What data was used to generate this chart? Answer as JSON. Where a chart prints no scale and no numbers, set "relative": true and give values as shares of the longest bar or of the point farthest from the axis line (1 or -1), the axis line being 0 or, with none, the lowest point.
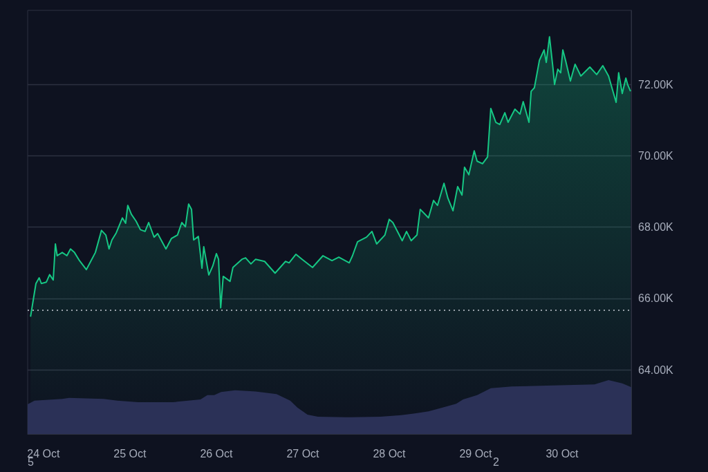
{
  "chart_data": [
    {
      "type": "area",
      "x": [
        "--10-23T20:24",
        "--10-23T20:54",
        "--10-23T21:54",
        "--10-23T22:48",
        "--10-23T23:24",
        "--10-24T00:48",
        "--10-24T01:42",
        "--10-24T02:42",
        "--10-24T03:18",
        "--10-24T03:48",
        "--10-24T05:12",
        "--10-24T06:30",
        "--10-24T07:30",
        "--10-24T08:36",
        "--10-24T10:00",
        "--10-24T11:54",
        "--10-24T12:54",
        "--10-24T14:24",
        "--10-24T16:06",
        "--10-24T17:18",
        "--10-24T18:12",
        "--10-24T19:00",
        "--10-24T20:12",
        "--10-24T21:54",
        "--10-24T22:48",
        "--10-24T23:24",
        "--10-25T00:24",
        "--10-25T01:42",
        "--10-25T02:54",
        "--10-25T04:12",
        "--10-25T05:12",
        "--10-25T06:42",
        "--10-25T07:42",
        "--10-25T10:00",
        "--10-25T11:30",
        "--10-25T13:12",
        "--10-25T14:24",
        "--10-25T15:24",
        "--10-25T16:18",
        "--10-25T17:06",
        "--10-25T17:42",
        "--10-25T19:00",
        "--10-25T20:00",
        "--10-25T20:30",
        "--10-25T21:54",
        "--10-25T23:00",
        "--10-26T00:00",
        "--10-26T00:36",
        "--10-26T01:12",
        "--10-26T01:54",
        "--10-26T03:48",
        "--10-26T04:36",
        "--10-26T07:06",
        "--10-26T08:06",
        "--10-26T09:36",
        "--10-26T10:54",
        "--10-26T13:24",
        "--10-26T16:18",
        "--10-26T19:12",
        "--10-26T20:12",
        "--10-26T22:06",
        "--10-26T23:48",
        "--10-27T02:42",
        "--10-27T05:36",
        "--10-27T08:06",
        "--10-27T10:00",
        "--10-27T12:54",
        "--10-27T13:48",
        "--10-27T15:12",
        "--10-27T17:42",
        "--10-27T19:12",
        "--10-27T20:30",
        "--10-27T22:48",
        "--10-28T00:00",
        "--10-28T01:00",
        "--10-28T03:36",
        "--10-28T04:48",
        "--10-28T06:06",
        "--10-28T07:42",
        "--10-28T08:36",
        "--10-28T10:54",
        "--10-28T12:18",
        "--10-28T13:24",
        "--10-28T15:12",
        "--10-28T16:18",
        "--10-28T17:42",
        "--10-28T19:00",
        "--10-28T20:12",
        "--10-28T20:54",
        "--10-28T22:06",
        "--10-28T23:36",
        "--10-29T00:24",
        "--10-29T01:54",
        "--10-29T03:18",
        "--10-29T04:12",
        "--10-29T05:36",
        "--10-29T06:42",
        "--10-29T08:06",
        "--10-29T09:00",
        "--10-29T10:54",
        "--10-29T12:18",
        "--10-29T13:12",
        "--10-29T14:48",
        "--10-29T15:24",
        "--10-29T16:18",
        "--10-29T17:42",
        "--10-29T19:00",
        "--10-29T19:36",
        "--10-29T20:30",
        "--10-29T21:30",
        "--10-29T21:54",
        "--10-29T22:48",
        "--10-29T23:36",
        "--10-30T00:12",
        "--10-30T01:00",
        "--10-30T02:18",
        "--10-30T03:36",
        "--10-30T05:12",
        "--10-30T07:42",
        "--10-30T09:36",
        "--10-30T11:18",
        "--10-30T12:54",
        "--10-30T14:00",
        "--10-30T15:00",
        "--10-30T15:42",
        "--10-30T16:42",
        "--10-30T17:42",
        "--10-30T18:12",
        "--10-30T19:00"
      ],
      "series": [
        {
          "color": "#16c784",
          "values": [
            65490,
            65800,
            66420,
            66580,
            66420,
            66460,
            66670,
            66520,
            67530,
            67200,
            67290,
            67200,
            67390,
            67290,
            67060,
            66810,
            67000,
            67290,
            67910,
            67780,
            67390,
            67640,
            67840,
            68260,
            68110,
            68610,
            68360,
            68170,
            67930,
            67880,
            68130,
            67720,
            67820,
            67390,
            67680,
            67780,
            68130,
            68010,
            68650,
            68500,
            67640,
            67740,
            66850,
            67450,
            66660,
            66910,
            67260,
            67100,
            65740,
            66620,
            66480,
            66870,
            67100,
            67140,
            66970,
            67100,
            67040,
            66710,
            67040,
            67000,
            67240,
            67100,
            66870,
            67200,
            67060,
            67160,
            67000,
            67200,
            67590,
            67720,
            67880,
            67530,
            67780,
            68220,
            68130,
            67620,
            67880,
            67620,
            67780,
            68500,
            68260,
            68750,
            68610,
            69230,
            68810,
            68460,
            69140,
            68900,
            69680,
            69470,
            70140,
            69850,
            69780,
            69970,
            71330,
            70940,
            70880,
            71210,
            70940,
            71310,
            71170,
            71520,
            70940,
            71810,
            71910,
            72680,
            72970,
            72620,
            73340,
            72430,
            72000,
            72430,
            72330,
            72970,
            72660,
            72100,
            72570,
            72240,
            72490,
            72280,
            72530,
            72240,
            71850,
            71500,
            72330,
            71750,
            72180,
            72000,
            71810
          ]
        }
      ],
      "xlim": [
        "--10-23T19:36",
        "--10-30T19:12"
      ],
      "xticks": [
        {
          "value": "--10-24",
          "label": "24 Oct"
        },
        {
          "value": "--10-25",
          "label": "25 Oct"
        },
        {
          "value": "--10-26",
          "label": "26 Oct"
        },
        {
          "value": "--10-27",
          "label": "27 Oct"
        },
        {
          "value": "--10-28",
          "label": "28 Oct"
        },
        {
          "value": "--10-29",
          "label": "29 Oct"
        },
        {
          "value": "--10-30",
          "label": "30 Oct"
        }
      ],
      "ylim": [
        62200,
        74080
      ],
      "yticks": [
        {
          "value": 64000,
          "label": "64.00K"
        },
        {
          "value": 66000,
          "label": "66.00K"
        },
        {
          "value": 68000,
          "label": "68.00K"
        },
        {
          "value": 70000,
          "label": "70.00K"
        },
        {
          "value": 72000,
          "label": "72.00K"
        }
      ],
      "grid": "y",
      "ref_lines": [
        {
          "axis": "y",
          "value": 65670,
          "color": "#c8ccd4",
          "line_style": "dotted"
        }
      ],
      "annotations": [
        "5",
        "2"
      ]
    },
    {
      "type": "area",
      "relative": true,
      "tick_labels": false,
      "x": [
        "--10-23T19:36",
        "--10-23T21:30",
        "--10-24T05:12",
        "--10-24T07:06",
        "--10-24T16:42",
        "--10-24T20:30",
        "--10-25T02:18",
        "--10-25T11:54",
        "--10-25T19:36",
        "--10-25T21:30",
        "--10-25T23:24",
        "--10-26T01:18",
        "--10-26T05:12",
        "--10-26T10:54",
        "--10-26T16:42",
        "--10-26T20:30",
        "--10-26T22:30",
        "--10-27T01:18",
        "--10-27T04:12",
        "--10-27T11:54",
        "--10-27T21:30",
        "--10-28T03:18",
        "--10-28T07:06",
        "--10-28T10:54",
        "--10-28T14:48",
        "--10-28T18:36",
        "--10-28T20:30",
        "--10-29T00:24",
        "--10-29T04:12",
        "--10-29T10:00",
        "--10-29T21:30",
        "--10-30T09:00",
        "--10-30T12:54",
        "--10-30T16:42",
        "--10-30T19:12"
      ],
      "series": [
        {
          "color": "#2b3157",
          "values": [
            0.55,
            0.62,
            0.65,
            0.67,
            0.65,
            0.62,
            0.59,
            0.59,
            0.64,
            0.72,
            0.72,
            0.78,
            0.81,
            0.79,
            0.74,
            0.62,
            0.49,
            0.36,
            0.32,
            0.31,
            0.32,
            0.35,
            0.38,
            0.42,
            0.49,
            0.56,
            0.64,
            0.72,
            0.85,
            0.88,
            0.9,
            0.92,
            1,
            0.94,
            0.87
          ]
        }
      ],
      "xlim": [
        "--10-23T19:36",
        "--10-30T19:12"
      ]
    }
  ]
}
